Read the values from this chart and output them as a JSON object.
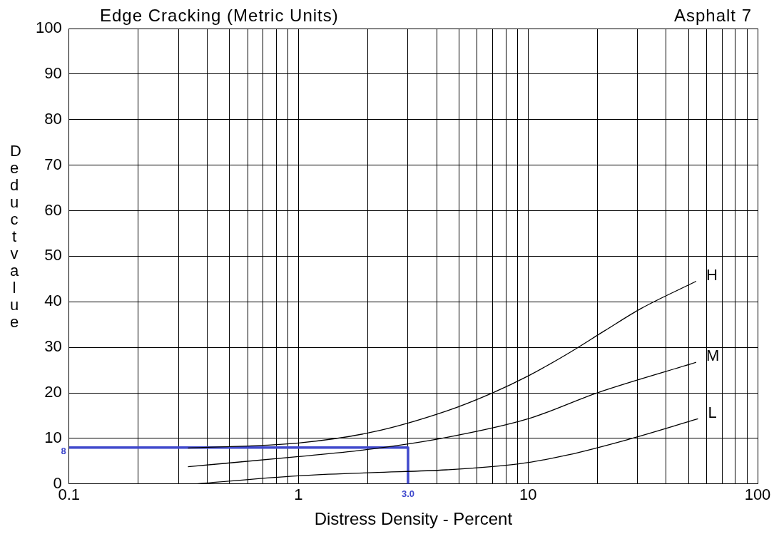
{
  "chart_data": {
    "type": "line",
    "title": "Edge Cracking (Metric Units)",
    "subtitle": "Asphalt 7",
    "xlabel": "Distress Density - Percent",
    "ylabel": "Deduct value",
    "log": "x",
    "grid": true,
    "legend": false,
    "marker": "none",
    "line_style": "solid",
    "xlim": [
      0.1,
      100
    ],
    "xticks": [
      0.1,
      {
        "value": 0.2,
        "label": null
      },
      {
        "value": 0.3,
        "label": null
      },
      {
        "value": 0.4,
        "label": null
      },
      {
        "value": 0.5,
        "label": null
      },
      {
        "value": 0.6,
        "label": null
      },
      {
        "value": 0.7,
        "label": null
      },
      {
        "value": 0.8,
        "label": null
      },
      {
        "value": 0.9,
        "label": null
      },
      1,
      {
        "value": 2,
        "label": null
      },
      {
        "value": 3,
        "label": null
      },
      {
        "value": 4,
        "label": null
      },
      {
        "value": 5,
        "label": null
      },
      {
        "value": 6,
        "label": null
      },
      {
        "value": 7,
        "label": null
      },
      {
        "value": 8,
        "label": null
      },
      {
        "value": 9,
        "label": null
      },
      10,
      {
        "value": 20,
        "label": null
      },
      {
        "value": 30,
        "label": null
      },
      {
        "value": 40,
        "label": null
      },
      {
        "value": 50,
        "label": null
      },
      {
        "value": 60,
        "label": null
      },
      {
        "value": 70,
        "label": null
      },
      {
        "value": 80,
        "label": null
      },
      {
        "value": 90,
        "label": null
      },
      100
    ],
    "ylim": [
      0,
      100
    ],
    "yticks": [
      0,
      10,
      20,
      30,
      40,
      50,
      60,
      70,
      80,
      90,
      100
    ],
    "series": [
      {
        "name": "H",
        "color": "#000000",
        "x": [
          0.33,
          1,
          2.1,
          4.4,
          7,
          10,
          15,
          21.5,
          31,
          54
        ],
        "values": [
          7.9,
          9,
          11.4,
          16,
          20,
          23.7,
          28.7,
          33.6,
          38.5,
          44.5
        ]
      },
      {
        "name": "M",
        "color": "#000000",
        "x": [
          0.33,
          1,
          2.1,
          4.4,
          10,
          20,
          54
        ],
        "values": [
          3.8,
          6,
          7.7,
          10.2,
          14.3,
          20,
          26.7
        ]
      },
      {
        "name": "L",
        "color": "#000000",
        "x": [
          0.35,
          1,
          2.1,
          4.4,
          9.1,
          15,
          27,
          55
        ],
        "values": [
          0,
          1.8,
          2.5,
          3.1,
          4.4,
          6.4,
          9.7,
          14.3
        ]
      },
      {
        "color": "#3f48cc",
        "x": [
          0.1,
          3,
          3
        ],
        "values": [
          8,
          8,
          0
        ]
      }
    ],
    "annotations": [
      {
        "text": "8",
        "x": 0.1,
        "y": 8
      },
      {
        "text": "3.0",
        "x": 3,
        "y": 0
      }
    ]
  }
}
